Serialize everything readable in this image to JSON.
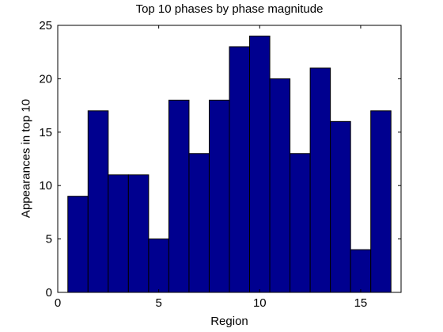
{
  "chart_data": {
    "type": "bar",
    "title": "Top 10 phases by phase magnitude",
    "xlabel": "Region",
    "ylabel": "Appearances in top 10",
    "categories": [
      1,
      2,
      3,
      4,
      5,
      6,
      7,
      8,
      9,
      10,
      11,
      12,
      13,
      14,
      15,
      16
    ],
    "values": [
      9,
      17,
      11,
      11,
      5,
      18,
      13,
      18,
      23,
      24,
      20,
      13,
      21,
      16,
      4,
      17
    ],
    "xlim": [
      0,
      17
    ],
    "ylim": [
      0,
      25
    ],
    "xticks": [
      0,
      5,
      10,
      15
    ],
    "yticks": [
      0,
      5,
      10,
      15,
      20,
      25
    ],
    "bar_color": "#00008f",
    "edge_color": "#000000",
    "grid": false
  }
}
